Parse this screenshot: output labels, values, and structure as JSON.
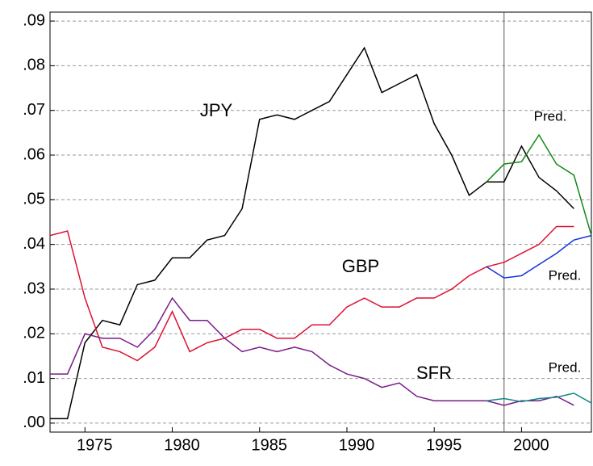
{
  "chart_data": {
    "type": "line",
    "x": [
      1973,
      1974,
      1975,
      1976,
      1977,
      1978,
      1979,
      1980,
      1981,
      1982,
      1983,
      1984,
      1985,
      1986,
      1987,
      1988,
      1989,
      1990,
      1991,
      1992,
      1993,
      1994,
      1995,
      1996,
      1997,
      1998,
      1999,
      2000,
      2001,
      2002,
      2003,
      2004
    ],
    "series": [
      {
        "name": "JPY",
        "color": "#000000",
        "values": [
          0.001,
          0.001,
          0.018,
          0.023,
          0.022,
          0.031,
          0.032,
          0.037,
          0.037,
          0.041,
          0.042,
          0.048,
          0.068,
          0.069,
          0.068,
          0.07,
          0.072,
          0.078,
          0.084,
          0.074,
          0.076,
          0.078,
          0.067,
          0.06,
          0.051,
          0.054,
          0.054,
          0.062,
          0.055,
          0.052,
          0.048,
          null
        ]
      },
      {
        "name": "Pred.",
        "color": "#118811",
        "values": [
          null,
          null,
          null,
          null,
          null,
          null,
          null,
          null,
          null,
          null,
          null,
          null,
          null,
          null,
          null,
          null,
          null,
          null,
          null,
          null,
          null,
          null,
          null,
          null,
          null,
          0.054,
          0.058,
          0.0585,
          0.0645,
          0.058,
          0.0555,
          0.042
        ]
      },
      {
        "name": "GBP",
        "color": "#dd1133",
        "values": [
          0.042,
          0.043,
          0.028,
          0.017,
          0.016,
          0.014,
          0.017,
          0.025,
          0.016,
          0.018,
          0.019,
          0.021,
          0.021,
          0.019,
          0.019,
          0.022,
          0.022,
          0.026,
          0.028,
          0.026,
          0.026,
          0.028,
          0.028,
          0.03,
          0.033,
          0.035,
          0.036,
          0.038,
          0.04,
          0.044,
          0.044,
          null
        ]
      },
      {
        "name": "Pred.",
        "color": "#1133dd",
        "values": [
          null,
          null,
          null,
          null,
          null,
          null,
          null,
          null,
          null,
          null,
          null,
          null,
          null,
          null,
          null,
          null,
          null,
          null,
          null,
          null,
          null,
          null,
          null,
          null,
          null,
          0.035,
          0.0325,
          0.033,
          0.0355,
          0.038,
          0.041,
          0.042
        ]
      },
      {
        "name": "SFR",
        "color": "#7a1a8a",
        "values": [
          0.011,
          0.011,
          0.02,
          0.019,
          0.019,
          0.017,
          0.021,
          0.028,
          0.023,
          0.023,
          0.019,
          0.016,
          0.017,
          0.016,
          0.017,
          0.016,
          0.013,
          0.011,
          0.01,
          0.008,
          0.009,
          0.006,
          0.005,
          0.005,
          0.005,
          0.005,
          0.004,
          0.005,
          0.005,
          0.006,
          0.004,
          null
        ]
      },
      {
        "name": "Pred.",
        "color": "#118888",
        "values": [
          null,
          null,
          null,
          null,
          null,
          null,
          null,
          null,
          null,
          null,
          null,
          null,
          null,
          null,
          null,
          null,
          null,
          null,
          null,
          null,
          null,
          null,
          null,
          null,
          null,
          0.005,
          0.0055,
          0.0048,
          0.0055,
          0.0058,
          0.0067,
          0.0045
        ]
      }
    ],
    "xlim": [
      1973,
      2004
    ],
    "xticks": [
      1975,
      1980,
      1985,
      1990,
      1995,
      2000
    ],
    "ylim": [
      -0.002,
      0.092
    ],
    "yticks": [
      {
        "value": 0,
        "label": ".00"
      },
      {
        "value": 0.01,
        "label": ".01"
      },
      {
        "value": 0.02,
        "label": ".02"
      },
      {
        "value": 0.03,
        "label": ".03"
      },
      {
        "value": 0.04,
        "label": ".04"
      },
      {
        "value": 0.05,
        "label": ".05"
      },
      {
        "value": 0.06,
        "label": ".06"
      },
      {
        "value": 0.07,
        "label": ".07"
      },
      {
        "value": 0.08,
        "label": ".08"
      },
      {
        "value": 0.09,
        "label": ".09"
      }
    ],
    "vline": 1999,
    "grid": true
  }
}
